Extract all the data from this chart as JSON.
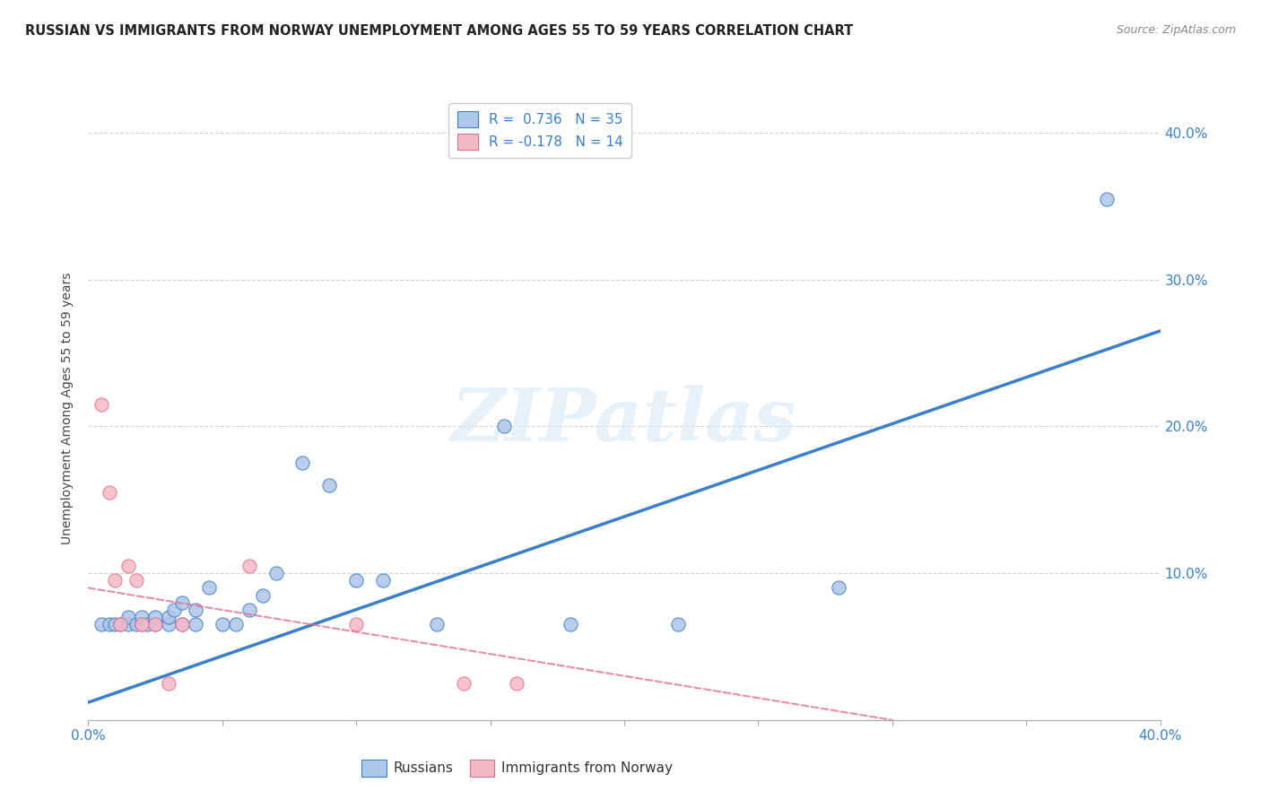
{
  "title": "RUSSIAN VS IMMIGRANTS FROM NORWAY UNEMPLOYMENT AMONG AGES 55 TO 59 YEARS CORRELATION CHART",
  "source": "Source: ZipAtlas.com",
  "ylabel": "Unemployment Among Ages 55 to 59 years",
  "xlim": [
    0.0,
    0.4
  ],
  "ylim": [
    0.0,
    0.425
  ],
  "xticks": [
    0.0,
    0.05,
    0.1,
    0.15,
    0.2,
    0.25,
    0.3,
    0.35,
    0.4
  ],
  "yticks": [
    0.0,
    0.1,
    0.2,
    0.3,
    0.4
  ],
  "ytick_labels": [
    "",
    "10.0%",
    "20.0%",
    "30.0%",
    "40.0%"
  ],
  "xtick_labels": [
    "0.0%",
    "",
    "",
    "",
    "",
    "",
    "",
    "",
    "40.0%"
  ],
  "watermark": "ZIPatlas",
  "blue_R": 0.736,
  "blue_N": 35,
  "pink_R": -0.178,
  "pink_N": 14,
  "blue_color": "#aec6e8",
  "blue_line_color": "#3a7fca",
  "pink_color": "#f5b8c8",
  "pink_line_color": "#e07090",
  "blue_scatter_x": [
    0.005,
    0.008,
    0.01,
    0.012,
    0.015,
    0.015,
    0.018,
    0.02,
    0.02,
    0.022,
    0.025,
    0.025,
    0.03,
    0.03,
    0.032,
    0.035,
    0.035,
    0.04,
    0.04,
    0.045,
    0.05,
    0.055,
    0.06,
    0.065,
    0.07,
    0.08,
    0.09,
    0.1,
    0.11,
    0.13,
    0.155,
    0.18,
    0.22,
    0.28,
    0.38
  ],
  "blue_scatter_y": [
    0.065,
    0.065,
    0.065,
    0.065,
    0.065,
    0.07,
    0.065,
    0.065,
    0.07,
    0.065,
    0.065,
    0.07,
    0.065,
    0.07,
    0.075,
    0.065,
    0.08,
    0.065,
    0.075,
    0.09,
    0.065,
    0.065,
    0.075,
    0.085,
    0.1,
    0.175,
    0.16,
    0.095,
    0.095,
    0.065,
    0.2,
    0.065,
    0.065,
    0.09,
    0.355
  ],
  "pink_scatter_x": [
    0.005,
    0.008,
    0.01,
    0.012,
    0.015,
    0.018,
    0.02,
    0.025,
    0.03,
    0.035,
    0.06,
    0.1,
    0.14,
    0.16
  ],
  "pink_scatter_y": [
    0.215,
    0.155,
    0.095,
    0.065,
    0.105,
    0.095,
    0.065,
    0.065,
    0.025,
    0.065,
    0.105,
    0.065,
    0.025,
    0.025
  ],
  "blue_line_x0": 0.0,
  "blue_line_y0": 0.012,
  "blue_line_x1": 0.4,
  "blue_line_y1": 0.265,
  "pink_line_x0": 0.0,
  "pink_line_y0": 0.09,
  "pink_line_x1": 0.3,
  "pink_line_y1": 0.0,
  "background_color": "#ffffff",
  "grid_color": "#cccccc"
}
